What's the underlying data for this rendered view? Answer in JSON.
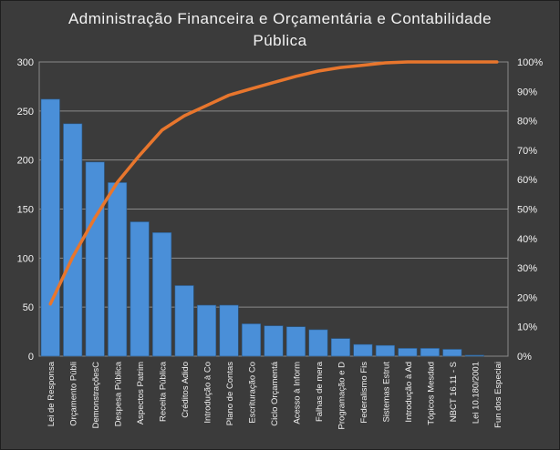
{
  "chart_data": {
    "type": "bar",
    "title_lines": [
      "Administração Financeira e Orçamentária e Contabilidade",
      "Pública"
    ],
    "categories": [
      "Lei de Responsa",
      "Orçamento Públi",
      "DemonstraçõesC",
      "Despesa Pública",
      "Aspectos Patrim",
      "Receita Pública",
      "Créditos Adido",
      "Introdução à Co",
      "Plano de Contas",
      "Escrituração Co",
      "Ciclo Orçamentá",
      "Acesso à Inform",
      "Falhas de mera",
      "Programação e D",
      "Federalismo Fis",
      "Sistemas Estrut",
      "Introdução à Ad",
      "Tópicos Mesdad",
      "NBCT 16.11 - S",
      "Lei 10.180/2001",
      "Fun dos Especiai"
    ],
    "series": [
      {
        "type": "bar",
        "values": [
          262,
          237,
          198,
          177,
          137,
          126,
          72,
          52,
          52,
          33,
          31,
          30,
          27,
          18,
          12,
          11,
          8,
          8,
          7,
          1,
          0
        ]
      },
      {
        "type": "line",
        "axis": "secondary",
        "values": [
          17.7,
          33.7,
          47.1,
          59.1,
          68.3,
          76.8,
          81.7,
          85.2,
          88.7,
          90.9,
          93.0,
          95.1,
          96.9,
          98.1,
          98.9,
          99.7,
          100.2,
          100.7,
          101.2,
          101.2,
          101.2
        ]
      }
    ],
    "ylim": [
      0,
      300
    ],
    "yticks": [
      "0",
      "50",
      "100",
      "150",
      "200",
      "250",
      "300"
    ],
    "y2lim": [
      0,
      100
    ],
    "y2ticks": [
      "0%",
      "10%",
      "20%",
      "30%",
      "40%",
      "50%",
      "60%",
      "70%",
      "80%",
      "90%",
      "100%"
    ],
    "grid": true,
    "legend": "none",
    "colors": {
      "bar": "#4a8fd8",
      "line": "#e8762d",
      "background": "#3b3b3b",
      "text": "#f2f2f2",
      "grid": "#8a8a8a"
    }
  }
}
